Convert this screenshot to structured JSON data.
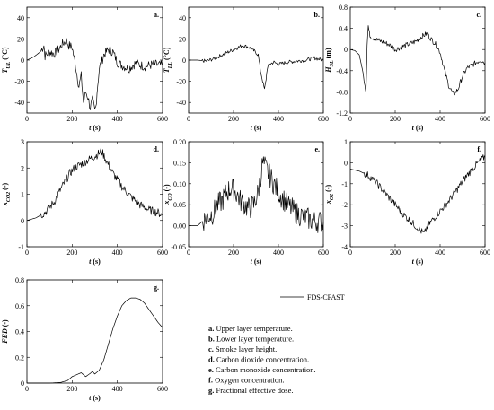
{
  "legend": {
    "series_label": "FDS-CFAST"
  },
  "captions": [
    {
      "letter": "a.",
      "text": "Upper layer temperature."
    },
    {
      "letter": "b.",
      "text": "Lower layer temperature."
    },
    {
      "letter": "c.",
      "text": "Smoke layer height."
    },
    {
      "letter": "d.",
      "text": "Carbon dioxide concentration."
    },
    {
      "letter": "e.",
      "text": "Carbon monoxide concentration."
    },
    {
      "letter": "f.",
      "text": "Oxygen concentration."
    },
    {
      "letter": "g.",
      "text": "Fractional effective dose."
    }
  ],
  "chart_data": [
    {
      "id": "a",
      "label": "a.",
      "type": "line",
      "title": "",
      "xlabel": "t (s)",
      "ylabel": "T_UL (°C)",
      "xlim": [
        0,
        600
      ],
      "ylim": [
        -50,
        50
      ],
      "xticks": [
        "0",
        "200",
        "400",
        "600"
      ],
      "yticks": [
        "40",
        "20",
        "0",
        "-20",
        "-40"
      ],
      "series": [
        {
          "name": "FDS-CFAST",
          "x": [
            0,
            30,
            60,
            75,
            80,
            100,
            120,
            140,
            160,
            175,
            185,
            200,
            215,
            230,
            240,
            250,
            260,
            270,
            280,
            290,
            300,
            305,
            310,
            320,
            340,
            360,
            380,
            400,
            420,
            450,
            480,
            520,
            560,
            600
          ],
          "y": [
            0,
            3,
            8,
            14,
            4,
            8,
            6,
            10,
            16,
            18,
            14,
            12,
            -5,
            -25,
            -15,
            -40,
            -30,
            -35,
            -45,
            -38,
            -48,
            -44,
            -30,
            -8,
            5,
            10,
            8,
            -2,
            -5,
            -8,
            -3,
            -6,
            -4,
            -5
          ]
        }
      ]
    },
    {
      "id": "b",
      "label": "b.",
      "type": "line",
      "title": "",
      "xlabel": "t (s)",
      "ylabel": "T_LL (°C)",
      "xlim": [
        0,
        600
      ],
      "ylim": [
        -50,
        50
      ],
      "xticks": [
        "0",
        "200",
        "400",
        "600"
      ],
      "yticks": [
        "40",
        "20",
        "0",
        "-20",
        "-40"
      ],
      "series": [
        {
          "name": "FDS-CFAST",
          "x": [
            0,
            40,
            80,
            120,
            160,
            200,
            240,
            270,
            290,
            310,
            320,
            330,
            338,
            345,
            350,
            360,
            380,
            400,
            440,
            480,
            520,
            560,
            600
          ],
          "y": [
            0,
            0,
            -1,
            2,
            6,
            10,
            14,
            12,
            9,
            5,
            -10,
            -20,
            -28,
            -18,
            -8,
            -4,
            -2,
            -4,
            -2,
            -1,
            0,
            2,
            0
          ]
        }
      ]
    },
    {
      "id": "c",
      "label": "c.",
      "type": "line",
      "title": "",
      "xlabel": "t (s)",
      "ylabel": "H_SL (m)",
      "xlim": [
        0,
        600
      ],
      "ylim": [
        -1.2,
        0.8
      ],
      "xticks": [
        "0",
        "200",
        "400",
        "600"
      ],
      "yticks": [
        "0.8",
        "0.4",
        "0",
        "-0.4",
        "-0.8",
        "-1.2"
      ],
      "series": [
        {
          "name": "FDS-CFAST",
          "x": [
            0,
            20,
            40,
            55,
            65,
            70,
            75,
            80,
            85,
            90,
            110,
            140,
            170,
            200,
            230,
            260,
            290,
            320,
            340,
            360,
            380,
            400,
            420,
            440,
            460,
            480,
            500,
            520,
            540,
            560,
            580,
            600
          ],
          "y": [
            0.0,
            -0.02,
            -0.1,
            -0.4,
            -0.65,
            -0.8,
            0.1,
            0.45,
            0.3,
            0.25,
            0.2,
            0.15,
            0.1,
            0.0,
            0.05,
            0.1,
            0.15,
            0.25,
            0.3,
            0.2,
            0.1,
            -0.05,
            -0.4,
            -0.7,
            -0.85,
            -0.75,
            -0.5,
            -0.35,
            -0.3,
            -0.25,
            -0.2,
            -0.25
          ]
        }
      ]
    },
    {
      "id": "d",
      "label": "d.",
      "type": "line",
      "title": "",
      "xlabel": "t (s)",
      "ylabel": "x_CO2 (-)",
      "xlim": [
        0,
        600
      ],
      "ylim": [
        -1,
        3
      ],
      "xticks": [
        "0",
        "200",
        "400",
        "600"
      ],
      "yticks": [
        "3",
        "2",
        "1",
        "0",
        "-1"
      ],
      "series": [
        {
          "name": "FDS-CFAST",
          "x": [
            0,
            40,
            80,
            120,
            150,
            170,
            190,
            210,
            230,
            250,
            270,
            290,
            310,
            330,
            350,
            380,
            420,
            460,
            500,
            540,
            580,
            600
          ],
          "y": [
            0,
            0.1,
            0.3,
            0.7,
            1.2,
            1.5,
            1.8,
            2.0,
            2.1,
            2.2,
            2.3,
            2.4,
            2.5,
            2.65,
            2.3,
            1.8,
            1.3,
            0.9,
            0.6,
            0.4,
            0.3,
            0.2
          ]
        }
      ]
    },
    {
      "id": "e",
      "label": "e.",
      "type": "line",
      "title": "",
      "xlabel": "t (s)",
      "ylabel": "x_CO (-)",
      "xlim": [
        0,
        600
      ],
      "ylim": [
        -0.05,
        0.2
      ],
      "xticks": [
        "0",
        "200",
        "400",
        "600"
      ],
      "yticks": [
        "0.20",
        "0.15",
        "0.10",
        "0.05",
        "0.00",
        "-0.05"
      ],
      "series": [
        {
          "name": "FDS-CFAST",
          "x": [
            0,
            40,
            80,
            110,
            130,
            150,
            170,
            190,
            210,
            230,
            250,
            270,
            290,
            310,
            330,
            340,
            360,
            380,
            400,
            440,
            480,
            520,
            560,
            600
          ],
          "y": [
            0,
            0.0,
            0.02,
            0.03,
            0.05,
            0.06,
            0.08,
            0.09,
            0.08,
            0.06,
            0.05,
            0.04,
            0.05,
            0.08,
            0.15,
            0.14,
            0.12,
            0.1,
            0.08,
            0.05,
            0.03,
            0.02,
            0.01,
            0.01
          ]
        }
      ]
    },
    {
      "id": "f",
      "label": "f.",
      "type": "line",
      "title": "",
      "xlabel": "t (s)",
      "ylabel": "x_O2 (-)",
      "xlim": [
        0,
        600
      ],
      "ylim": [
        -4,
        1
      ],
      "xticks": [
        "0",
        "200",
        "400",
        "600"
      ],
      "yticks": [
        "1",
        "0",
        "-1",
        "-2",
        "-3",
        "-4"
      ],
      "series": [
        {
          "name": "FDS-CFAST",
          "x": [
            0,
            40,
            80,
            120,
            160,
            200,
            240,
            280,
            310,
            330,
            340,
            360,
            400,
            440,
            480,
            520,
            560,
            580,
            600
          ],
          "y": [
            -0.3,
            -0.4,
            -0.6,
            -1.0,
            -1.5,
            -2.0,
            -2.5,
            -2.9,
            -3.2,
            -3.4,
            -3.1,
            -2.8,
            -2.3,
            -1.8,
            -1.2,
            -0.6,
            -0.1,
            0.1,
            0.3
          ]
        }
      ]
    },
    {
      "id": "g",
      "label": "g.",
      "type": "line",
      "title": "",
      "xlabel": "t (s)",
      "ylabel": "FED (-)",
      "xlim": [
        0,
        600
      ],
      "ylim": [
        0,
        0.8
      ],
      "xticks": [
        "0",
        "200",
        "400",
        "600"
      ],
      "yticks": [
        "0.8",
        "0.6",
        "0.4",
        "0.2",
        "0"
      ],
      "series": [
        {
          "name": "FDS-CFAST",
          "x": [
            0,
            100,
            150,
            180,
            200,
            220,
            240,
            250,
            260,
            280,
            290,
            300,
            320,
            340,
            360,
            380,
            400,
            420,
            440,
            460,
            480,
            500,
            520,
            540,
            560,
            580,
            600
          ],
          "y": [
            0,
            0,
            0.005,
            0.02,
            0.05,
            0.065,
            0.08,
            0.065,
            0.05,
            0.075,
            0.09,
            0.07,
            0.1,
            0.18,
            0.3,
            0.42,
            0.52,
            0.6,
            0.64,
            0.66,
            0.66,
            0.65,
            0.62,
            0.57,
            0.52,
            0.47,
            0.43
          ]
        }
      ]
    }
  ]
}
